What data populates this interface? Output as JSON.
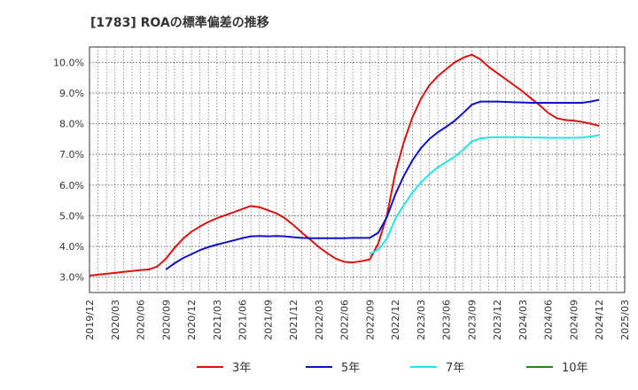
{
  "title": "[1783]  ROAの標準偏差の推移",
  "chart_data": {
    "type": "line",
    "title": "[1783]  ROAの標準偏差の推移",
    "xlabel": "",
    "ylabel": "",
    "x_range": [
      "2019-12",
      "2025-03"
    ],
    "ylim": [
      2.5,
      10.5
    ],
    "y_ticks": [
      "3.0%",
      "4.0%",
      "5.0%",
      "6.0%",
      "7.0%",
      "8.0%",
      "9.0%",
      "10.0%"
    ],
    "x_ticks": [
      "2019/12",
      "2020/03",
      "2020/06",
      "2020/09",
      "2020/12",
      "2021/03",
      "2021/06",
      "2021/09",
      "2021/12",
      "2022/03",
      "2022/06",
      "2022/09",
      "2022/12",
      "2023/03",
      "2023/06",
      "2023/09",
      "2023/12",
      "2024/03",
      "2024/06",
      "2024/09",
      "2024/12",
      "2025/03"
    ],
    "grid": true,
    "legend_position": "bottom",
    "series": [
      {
        "name": "3年",
        "color": "#dd1111",
        "points": [
          [
            "2019-12",
            3.05
          ],
          [
            "2020-01",
            3.08
          ],
          [
            "2020-02",
            3.11
          ],
          [
            "2020-03",
            3.14
          ],
          [
            "2020-04",
            3.17
          ],
          [
            "2020-05",
            3.2
          ],
          [
            "2020-06",
            3.23
          ],
          [
            "2020-07",
            3.25
          ],
          [
            "2020-08",
            3.35
          ],
          [
            "2020-09",
            3.6
          ],
          [
            "2020-10",
            3.95
          ],
          [
            "2020-11",
            4.25
          ],
          [
            "2020-12",
            4.48
          ],
          [
            "2021-01",
            4.65
          ],
          [
            "2021-02",
            4.8
          ],
          [
            "2021-03",
            4.92
          ],
          [
            "2021-04",
            5.02
          ],
          [
            "2021-05",
            5.12
          ],
          [
            "2021-06",
            5.22
          ],
          [
            "2021-07",
            5.32
          ],
          [
            "2021-08",
            5.28
          ],
          [
            "2021-09",
            5.18
          ],
          [
            "2021-10",
            5.08
          ],
          [
            "2021-11",
            4.92
          ],
          [
            "2021-12",
            4.7
          ],
          [
            "2022-01",
            4.45
          ],
          [
            "2022-02",
            4.22
          ],
          [
            "2022-03",
            3.98
          ],
          [
            "2022-04",
            3.78
          ],
          [
            "2022-05",
            3.6
          ],
          [
            "2022-06",
            3.5
          ],
          [
            "2022-07",
            3.48
          ],
          [
            "2022-08",
            3.52
          ],
          [
            "2022-09",
            3.58
          ],
          [
            "2022-10",
            4.1
          ],
          [
            "2022-11",
            5.0
          ],
          [
            "2022-12",
            6.4
          ],
          [
            "2023-01",
            7.4
          ],
          [
            "2023-02",
            8.2
          ],
          [
            "2023-03",
            8.8
          ],
          [
            "2023-04",
            9.25
          ],
          [
            "2023-05",
            9.55
          ],
          [
            "2023-06",
            9.78
          ],
          [
            "2023-07",
            10.0
          ],
          [
            "2023-08",
            10.15
          ],
          [
            "2023-09",
            10.25
          ],
          [
            "2023-10",
            10.1
          ],
          [
            "2023-11",
            9.85
          ],
          [
            "2023-12",
            9.65
          ],
          [
            "2024-01",
            9.45
          ],
          [
            "2024-02",
            9.25
          ],
          [
            "2024-03",
            9.05
          ],
          [
            "2024-04",
            8.82
          ],
          [
            "2024-05",
            8.6
          ],
          [
            "2024-06",
            8.35
          ],
          [
            "2024-07",
            8.18
          ],
          [
            "2024-08",
            8.12
          ],
          [
            "2024-09",
            8.1
          ],
          [
            "2024-10",
            8.06
          ],
          [
            "2024-11",
            8.0
          ],
          [
            "2024-12",
            7.93
          ]
        ]
      },
      {
        "name": "5年",
        "color": "#1111cc",
        "points": [
          [
            "2020-09",
            3.25
          ],
          [
            "2020-10",
            3.45
          ],
          [
            "2020-11",
            3.62
          ],
          [
            "2020-12",
            3.75
          ],
          [
            "2021-01",
            3.88
          ],
          [
            "2021-02",
            3.98
          ],
          [
            "2021-03",
            4.06
          ],
          [
            "2021-04",
            4.13
          ],
          [
            "2021-05",
            4.2
          ],
          [
            "2021-06",
            4.27
          ],
          [
            "2021-07",
            4.33
          ],
          [
            "2021-08",
            4.34
          ],
          [
            "2021-09",
            4.33
          ],
          [
            "2021-10",
            4.34
          ],
          [
            "2021-11",
            4.33
          ],
          [
            "2021-12",
            4.3
          ],
          [
            "2022-01",
            4.28
          ],
          [
            "2022-02",
            4.27
          ],
          [
            "2022-03",
            4.27
          ],
          [
            "2022-04",
            4.27
          ],
          [
            "2022-05",
            4.27
          ],
          [
            "2022-06",
            4.27
          ],
          [
            "2022-07",
            4.28
          ],
          [
            "2022-08",
            4.28
          ],
          [
            "2022-09",
            4.28
          ],
          [
            "2022-10",
            4.45
          ],
          [
            "2022-11",
            4.95
          ],
          [
            "2022-12",
            5.7
          ],
          [
            "2023-01",
            6.3
          ],
          [
            "2023-02",
            6.8
          ],
          [
            "2023-03",
            7.2
          ],
          [
            "2023-04",
            7.5
          ],
          [
            "2023-05",
            7.72
          ],
          [
            "2023-06",
            7.9
          ],
          [
            "2023-07",
            8.1
          ],
          [
            "2023-08",
            8.35
          ],
          [
            "2023-09",
            8.62
          ],
          [
            "2023-10",
            8.72
          ],
          [
            "2023-11",
            8.72
          ],
          [
            "2023-12",
            8.72
          ],
          [
            "2024-01",
            8.71
          ],
          [
            "2024-02",
            8.7
          ],
          [
            "2024-03",
            8.69
          ],
          [
            "2024-04",
            8.68
          ],
          [
            "2024-05",
            8.68
          ],
          [
            "2024-06",
            8.68
          ],
          [
            "2024-07",
            8.68
          ],
          [
            "2024-08",
            8.68
          ],
          [
            "2024-09",
            8.68
          ],
          [
            "2024-10",
            8.68
          ],
          [
            "2024-11",
            8.72
          ],
          [
            "2024-12",
            8.78
          ]
        ]
      },
      {
        "name": "7年",
        "color": "#22e5e5",
        "points": [
          [
            "2022-09",
            3.75
          ],
          [
            "2022-10",
            3.9
          ],
          [
            "2022-11",
            4.25
          ],
          [
            "2022-12",
            4.9
          ],
          [
            "2023-01",
            5.35
          ],
          [
            "2023-02",
            5.75
          ],
          [
            "2023-03",
            6.08
          ],
          [
            "2023-04",
            6.35
          ],
          [
            "2023-05",
            6.58
          ],
          [
            "2023-06",
            6.75
          ],
          [
            "2023-07",
            6.93
          ],
          [
            "2023-08",
            7.15
          ],
          [
            "2023-09",
            7.42
          ],
          [
            "2023-10",
            7.52
          ],
          [
            "2023-11",
            7.55
          ],
          [
            "2023-12",
            7.56
          ],
          [
            "2024-01",
            7.56
          ],
          [
            "2024-02",
            7.56
          ],
          [
            "2024-03",
            7.56
          ],
          [
            "2024-04",
            7.55
          ],
          [
            "2024-05",
            7.55
          ],
          [
            "2024-06",
            7.54
          ],
          [
            "2024-07",
            7.54
          ],
          [
            "2024-08",
            7.54
          ],
          [
            "2024-09",
            7.54
          ],
          [
            "2024-10",
            7.55
          ],
          [
            "2024-11",
            7.58
          ],
          [
            "2024-12",
            7.63
          ]
        ]
      },
      {
        "name": "10年",
        "color": "#228822",
        "points": []
      }
    ]
  }
}
